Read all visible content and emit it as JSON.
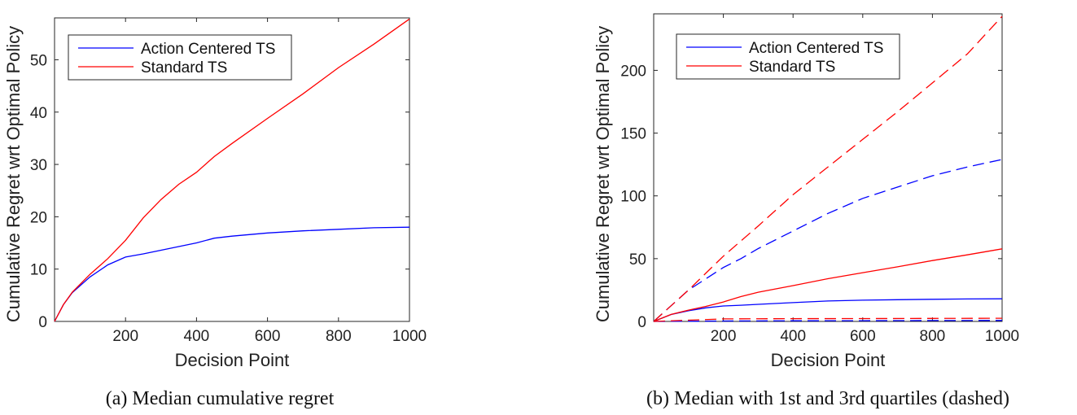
{
  "chart_data": [
    {
      "type": "line",
      "caption": "(a) Median cumulative regret",
      "xlabel": "Decision Point",
      "ylabel": "Cumulative Regret wrt Optimal Policy",
      "xlim": [
        0,
        1000
      ],
      "ylim": [
        0,
        58
      ],
      "xticks": [
        200,
        400,
        600,
        800,
        1000
      ],
      "yticks": [
        0,
        10,
        20,
        30,
        40,
        50
      ],
      "legend_position": "top-left",
      "legend": [
        "Action Centered TS",
        "Standard TS"
      ],
      "series": [
        {
          "name": "Action Centered TS",
          "color": "#0000ff",
          "style": "solid",
          "x": [
            0,
            25,
            50,
            100,
            150,
            200,
            250,
            300,
            350,
            400,
            450,
            500,
            600,
            700,
            800,
            900,
            1000
          ],
          "y": [
            0,
            3.2,
            5.5,
            8.5,
            10.8,
            12.3,
            12.9,
            13.6,
            14.3,
            15.0,
            15.9,
            16.3,
            16.9,
            17.3,
            17.6,
            17.9,
            18.0
          ]
        },
        {
          "name": "Standard TS",
          "color": "#ff0000",
          "style": "solid",
          "x": [
            0,
            25,
            50,
            100,
            150,
            200,
            250,
            300,
            350,
            400,
            450,
            500,
            600,
            700,
            800,
            900,
            1000
          ],
          "y": [
            0,
            3.2,
            5.6,
            9.0,
            12.0,
            15.5,
            19.8,
            23.3,
            26.2,
            28.5,
            31.5,
            34.0,
            38.8,
            43.5,
            48.5,
            53.0,
            57.8
          ]
        }
      ]
    },
    {
      "type": "line",
      "caption": "(b) Median with 1st and 3rd quartiles (dashed)",
      "xlabel": "Decision Point",
      "ylabel": "Cumulative Regret wrt Optimal Policy",
      "xlim": [
        0,
        1000
      ],
      "ylim": [
        0,
        245
      ],
      "xticks": [
        200,
        400,
        600,
        800,
        1000
      ],
      "yticks": [
        0,
        50,
        100,
        150,
        200
      ],
      "legend_position": "top-left",
      "legend": [
        "Action Centered TS",
        "Standard TS"
      ],
      "series": [
        {
          "name": "Action Centered TS",
          "color": "#0000ff",
          "style": "solid",
          "x": [
            0,
            50,
            100,
            150,
            200,
            250,
            300,
            400,
            500,
            600,
            700,
            800,
            900,
            1000
          ],
          "y": [
            0,
            5.5,
            8.5,
            10.8,
            12.3,
            12.9,
            13.6,
            15.0,
            16.3,
            16.9,
            17.3,
            17.6,
            17.9,
            18.0
          ]
        },
        {
          "name": "Standard TS",
          "color": "#ff0000",
          "style": "solid",
          "x": [
            0,
            50,
            100,
            150,
            200,
            250,
            300,
            400,
            500,
            600,
            700,
            800,
            900,
            1000
          ],
          "y": [
            0,
            5.6,
            9.0,
            12.0,
            15.5,
            19.8,
            23.3,
            28.5,
            34.0,
            38.8,
            43.5,
            48.5,
            53.0,
            57.8
          ]
        },
        {
          "name": "Action Centered TS Q3",
          "color": "#0000ff",
          "style": "dashed",
          "x": [
            0,
            100,
            200,
            250,
            300,
            400,
            500,
            600,
            700,
            800,
            900,
            1000
          ],
          "y": [
            0,
            25,
            43,
            50,
            58,
            72,
            86,
            98,
            107,
            116,
            123,
            129
          ]
        },
        {
          "name": "Standard TS Q3",
          "color": "#ff0000",
          "style": "dashed",
          "x": [
            0,
            100,
            200,
            300,
            400,
            500,
            600,
            700,
            800,
            900,
            1000
          ],
          "y": [
            0,
            25,
            52,
            76,
            101,
            123,
            145,
            167,
            190,
            213,
            243
          ]
        },
        {
          "name": "Action Centered TS Q1",
          "color": "#0000ff",
          "style": "dashed",
          "x": [
            0,
            200,
            400,
            600,
            800,
            1000
          ],
          "y": [
            0,
            0.3,
            0.5,
            0.6,
            0.7,
            0.8
          ]
        },
        {
          "name": "Standard TS Q1",
          "color": "#ff0000",
          "style": "dashed",
          "x": [
            0,
            200,
            400,
            600,
            800,
            1000
          ],
          "y": [
            0,
            2.0,
            2.2,
            2.3,
            2.4,
            2.5
          ]
        }
      ]
    }
  ]
}
